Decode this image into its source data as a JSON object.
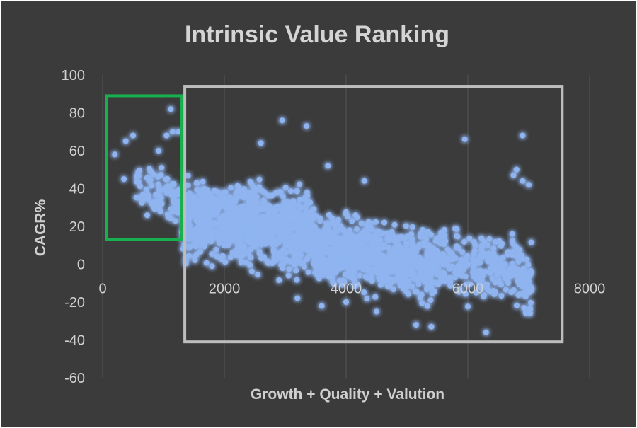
{
  "chart_data": {
    "type": "scatter",
    "title": "Intrinsic Value Ranking",
    "xlabel": "Growth + Quality + Valution",
    "ylabel": "CAGR%",
    "xlim": [
      0,
      8000
    ],
    "ylim": [
      -60,
      100
    ],
    "x_ticks": [
      "0",
      "2000",
      "4000",
      "6000",
      "8000"
    ],
    "y_ticks": [
      "100",
      "80",
      "60",
      "40",
      "20",
      "0",
      "-20",
      "-40",
      "-60"
    ],
    "grid": "vertical",
    "legend": "none",
    "series": [
      {
        "color": "#8fb4f0",
        "glow": "#2f6cff",
        "outliers": [
          [
            1120,
            82
          ],
          [
            2950,
            76
          ],
          [
            3350,
            73
          ],
          [
            2600,
            64
          ],
          [
            5950,
            66
          ],
          [
            6900,
            68
          ],
          [
            200,
            58
          ],
          [
            380,
            65
          ],
          [
            500,
            68
          ],
          [
            350,
            45
          ],
          [
            920,
            60
          ],
          [
            1050,
            68
          ],
          [
            1150,
            70
          ],
          [
            1250,
            70
          ],
          [
            6800,
            50
          ],
          [
            6900,
            44
          ],
          [
            6750,
            47
          ],
          [
            7000,
            42
          ],
          [
            3700,
            52
          ],
          [
            4300,
            44
          ],
          [
            6300,
            -36
          ],
          [
            5400,
            -33
          ],
          [
            5150,
            -32
          ],
          [
            3600,
            -22
          ],
          [
            4000,
            -20
          ],
          [
            3200,
            -18
          ],
          [
            7000,
            -9
          ],
          [
            6950,
            -17
          ],
          [
            4500,
            -25
          ]
        ],
        "clusters": [
          {
            "x_min": 550,
            "x_max": 1300,
            "y_top": 55,
            "y_bottom": 18,
            "count": 95
          },
          {
            "x_min": 1300,
            "x_max": 3500,
            "y_top": 50,
            "y_bottom": -8,
            "count": 900
          },
          {
            "x_min": 3500,
            "x_max": 5500,
            "y_top": 30,
            "y_bottom": -22,
            "count": 650
          },
          {
            "x_min": 5500,
            "x_max": 7050,
            "y_top": 22,
            "y_bottom": -25,
            "count": 260
          }
        ]
      }
    ],
    "annotations": [
      {
        "shape": "rectangle",
        "color": "#16b04f",
        "x": [
          60,
          1300
        ],
        "y": [
          13,
          89
        ]
      },
      {
        "shape": "rectangle",
        "color": "#bdbdbd",
        "x": [
          1350,
          7550
        ],
        "y": [
          -41,
          94
        ]
      }
    ]
  }
}
